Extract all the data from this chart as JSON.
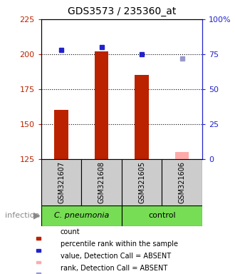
{
  "title": "GDS3573 / 235360_at",
  "samples": [
    "GSM321607",
    "GSM321608",
    "GSM321605",
    "GSM321606"
  ],
  "values": [
    160,
    202,
    185,
    130
  ],
  "percentile_ranks": [
    78,
    80,
    75,
    72
  ],
  "value_absent": [
    false,
    false,
    false,
    true
  ],
  "rank_absent": [
    false,
    false,
    false,
    true
  ],
  "ylim_left": [
    125,
    225
  ],
  "ylim_right": [
    0,
    100
  ],
  "yticks_left": [
    125,
    150,
    175,
    200,
    225
  ],
  "yticks_right": [
    0,
    25,
    50,
    75,
    100
  ],
  "bar_color_present": "#bb2200",
  "bar_color_absent": "#ffaaaa",
  "dot_color_present": "#2222cc",
  "dot_color_absent": "#9999cc",
  "sample_box_color": "#cccccc",
  "group_box_color": "#77dd55",
  "legend_items": [
    {
      "color": "#bb2200",
      "label": "count"
    },
    {
      "color": "#2222cc",
      "label": "percentile rank within the sample"
    },
    {
      "color": "#ffaaaa",
      "label": "value, Detection Call = ABSENT"
    },
    {
      "color": "#9999cc",
      "label": "rank, Detection Call = ABSENT"
    }
  ],
  "infection_label": "infection",
  "dotted_line_values": [
    150,
    175,
    200
  ],
  "right_axis_color": "#2222cc",
  "left_axis_color": "#bb2200",
  "group_spans": [
    [
      0,
      1,
      "C. pneumonia"
    ],
    [
      2,
      3,
      "control"
    ]
  ]
}
